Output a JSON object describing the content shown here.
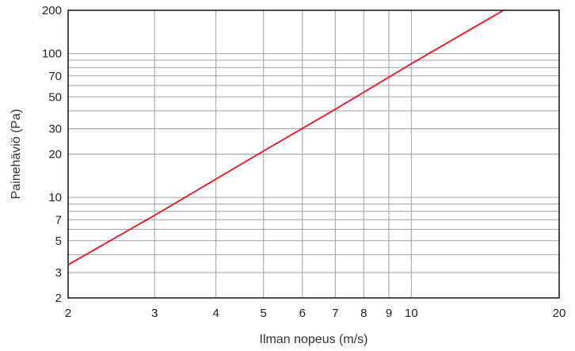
{
  "chart_data": {
    "type": "line",
    "title": "",
    "xlabel": "Ilman nopeus (m/s)",
    "ylabel": "Painehäviö (Pa)",
    "x_scale": "log",
    "y_scale": "log",
    "xlim": [
      2,
      20
    ],
    "ylim": [
      2,
      200
    ],
    "x_ticks": [
      2,
      3,
      4,
      5,
      6,
      7,
      8,
      9,
      10,
      20
    ],
    "x_tick_labels": [
      "2",
      "3",
      "4",
      "5",
      "6",
      "7",
      "8",
      "9",
      "10",
      "20"
    ],
    "y_ticks": [
      2,
      3,
      5,
      7,
      10,
      20,
      30,
      50,
      70,
      100,
      200
    ],
    "y_tick_labels": [
      "2",
      "3",
      "5",
      "7",
      "10",
      "20",
      "30",
      "50",
      "70",
      "100",
      "200"
    ],
    "x_grid": [
      3,
      4,
      5,
      6,
      7,
      8,
      9,
      10
    ],
    "y_grid": [
      3,
      4,
      5,
      6,
      7,
      8,
      9,
      10,
      20,
      30,
      40,
      50,
      60,
      70,
      80,
      90,
      100
    ],
    "grid": true,
    "series": [
      {
        "color": "#e8141e",
        "x": [
          2,
          3,
          5,
          7,
          10,
          15.4
        ],
        "y": [
          3.4,
          7.5,
          21,
          41,
          85,
          200
        ]
      }
    ],
    "colors": {
      "line": "#e8141e",
      "grid": "#a0a0a0",
      "frame": "#222222"
    }
  }
}
